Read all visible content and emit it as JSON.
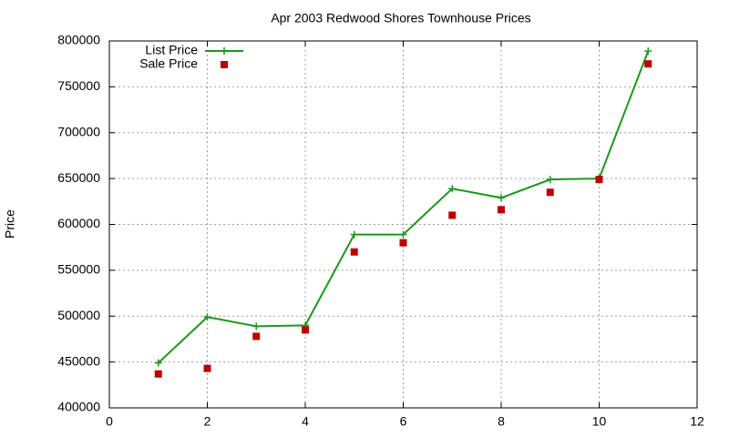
{
  "chart_data": {
    "type": "line",
    "title": "Apr 2003 Redwood Shores Townhouse Prices",
    "y_label": "Price",
    "x": [
      1,
      2,
      3,
      4,
      5,
      6,
      7,
      8,
      9,
      10,
      11
    ],
    "series": [
      {
        "name": "List Price",
        "color": "#199a19",
        "mode": "lines+points",
        "values": [
          449000,
          499000,
          489000,
          490000,
          589000,
          589000,
          639000,
          629000,
          649000,
          650000,
          789000
        ]
      },
      {
        "name": "Sale Price",
        "color": "#c00000",
        "mode": "points",
        "values": [
          437000,
          443000,
          478000,
          485000,
          570000,
          580000,
          610000,
          616000,
          635000,
          649000,
          775000
        ]
      }
    ],
    "xlim": [
      0,
      12
    ],
    "xticks": [
      0,
      2,
      4,
      6,
      8,
      10,
      12
    ],
    "ylim": [
      400000,
      800000
    ],
    "yticks": [
      400000,
      450000,
      500000,
      550000,
      600000,
      650000,
      700000,
      750000,
      800000
    ],
    "grid": true,
    "legend": "top-left"
  }
}
